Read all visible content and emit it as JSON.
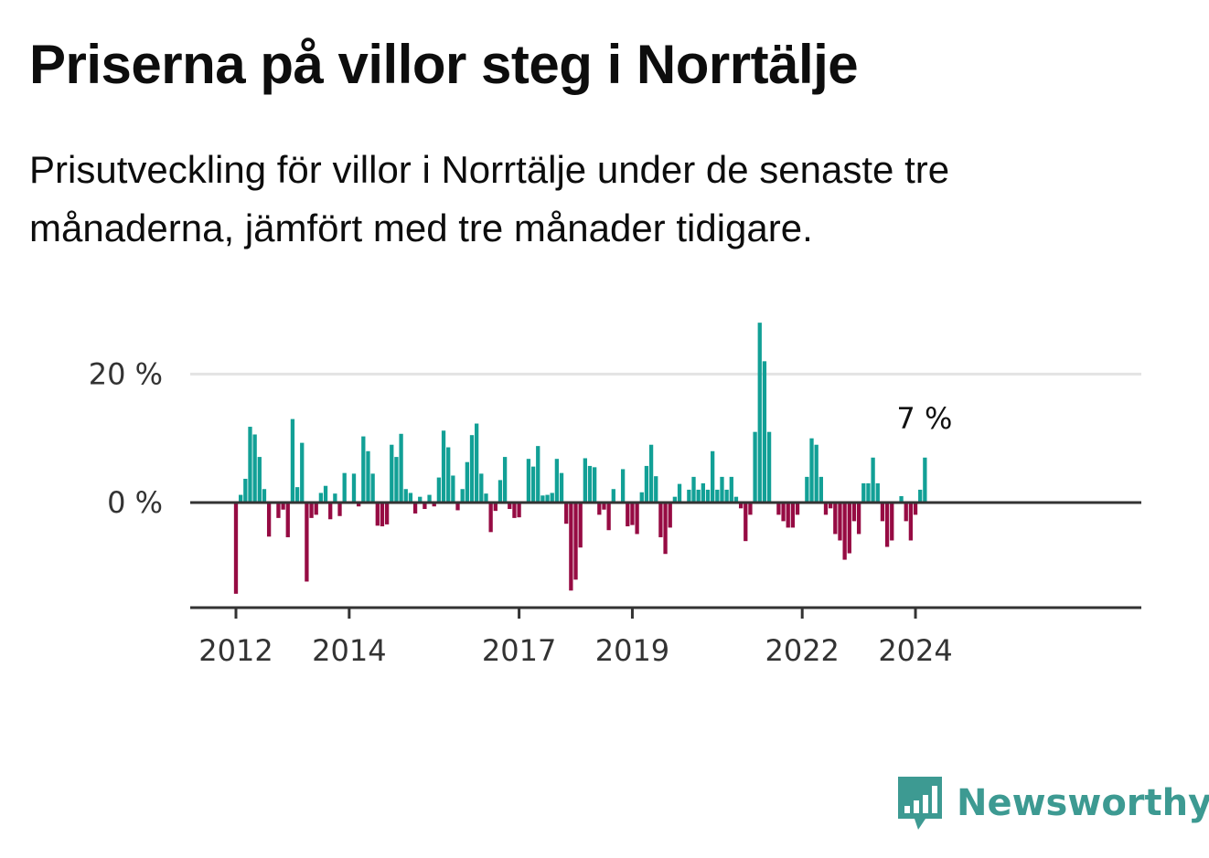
{
  "title": "Priserna på villor steg i Norrtälje",
  "subtitle": "Prisutveckling för villor i Norrtälje under de senaste tre månaderna, jämfört med tre månader tidigare.",
  "brand": {
    "name": "Newsworthy",
    "icon": "newsworthy-logo-icon",
    "color": "#3d9a92"
  },
  "colors": {
    "positive": "#12a096",
    "negative": "#960b43",
    "grid": "#e3e3e3",
    "axis": "#333333"
  },
  "chart_data": {
    "type": "bar",
    "title": "",
    "xlabel": "",
    "ylabel": "",
    "ylim": [
      -16.5,
      28
    ],
    "grid": "horizontal",
    "y_ticks": [
      {
        "value": 0,
        "label": "0 %"
      },
      {
        "value": 20,
        "label": "20 %"
      }
    ],
    "x_ticks": [
      "2012",
      "2014",
      "2017",
      "2019",
      "2022",
      "2024"
    ],
    "x_start": "2012-01",
    "annotation": {
      "label": "7 %",
      "value": 7
    },
    "values": [
      -14.2,
      1.2,
      3.7,
      11.8,
      10.6,
      7.1,
      2.1,
      -5.3,
      null,
      -2.4,
      -1.1,
      -5.4,
      13.0,
      2.4,
      9.3,
      -12.3,
      -2.4,
      -1.9,
      1.5,
      2.6,
      -2.6,
      1.4,
      -2.1,
      4.6,
      null,
      4.5,
      -0.6,
      10.3,
      8.0,
      4.5,
      -3.6,
      -3.7,
      -3.4,
      9.0,
      7.1,
      10.7,
      2.1,
      1.5,
      -1.7,
      0.9,
      -1.0,
      1.2,
      -0.6,
      3.9,
      11.2,
      8.6,
      4.2,
      -1.2,
      2.1,
      6.3,
      10.5,
      12.3,
      4.5,
      1.4,
      -4.6,
      -1.3,
      3.5,
      7.1,
      -1.0,
      -2.4,
      -2.3,
      null,
      6.8,
      5.6,
      8.8,
      1.1,
      1.2,
      1.5,
      6.8,
      4.6,
      -3.3,
      -13.7,
      -12.0,
      -7.0,
      6.9,
      5.7,
      5.5,
      -1.9,
      -1.1,
      -4.3,
      2.1,
      null,
      5.2,
      -3.7,
      -3.5,
      -4.9,
      1.6,
      5.7,
      9.0,
      4.1,
      -5.4,
      -8.0,
      -3.9,
      0.9,
      2.9,
      null,
      2.0,
      4.0,
      2.0,
      3.0,
      2.0,
      8.0,
      2.0,
      4.0,
      2.0,
      4.0,
      0.9,
      -0.9,
      -6.0,
      -1.9,
      11.0,
      28.0,
      22.0,
      11.0,
      null,
      -1.9,
      -2.9,
      -3.9,
      -3.9,
      -1.9,
      null,
      4.0,
      10.0,
      9.0,
      4.0,
      -1.9,
      -0.9,
      -4.9,
      -5.9,
      -8.9,
      -7.9,
      -2.9,
      -4.9,
      3.0,
      3.0,
      7.0,
      3.0,
      -2.9,
      -6.9,
      -5.9,
      null,
      1.0,
      -2.9,
      -5.9,
      -1.9,
      2.0,
      7.0
    ]
  }
}
